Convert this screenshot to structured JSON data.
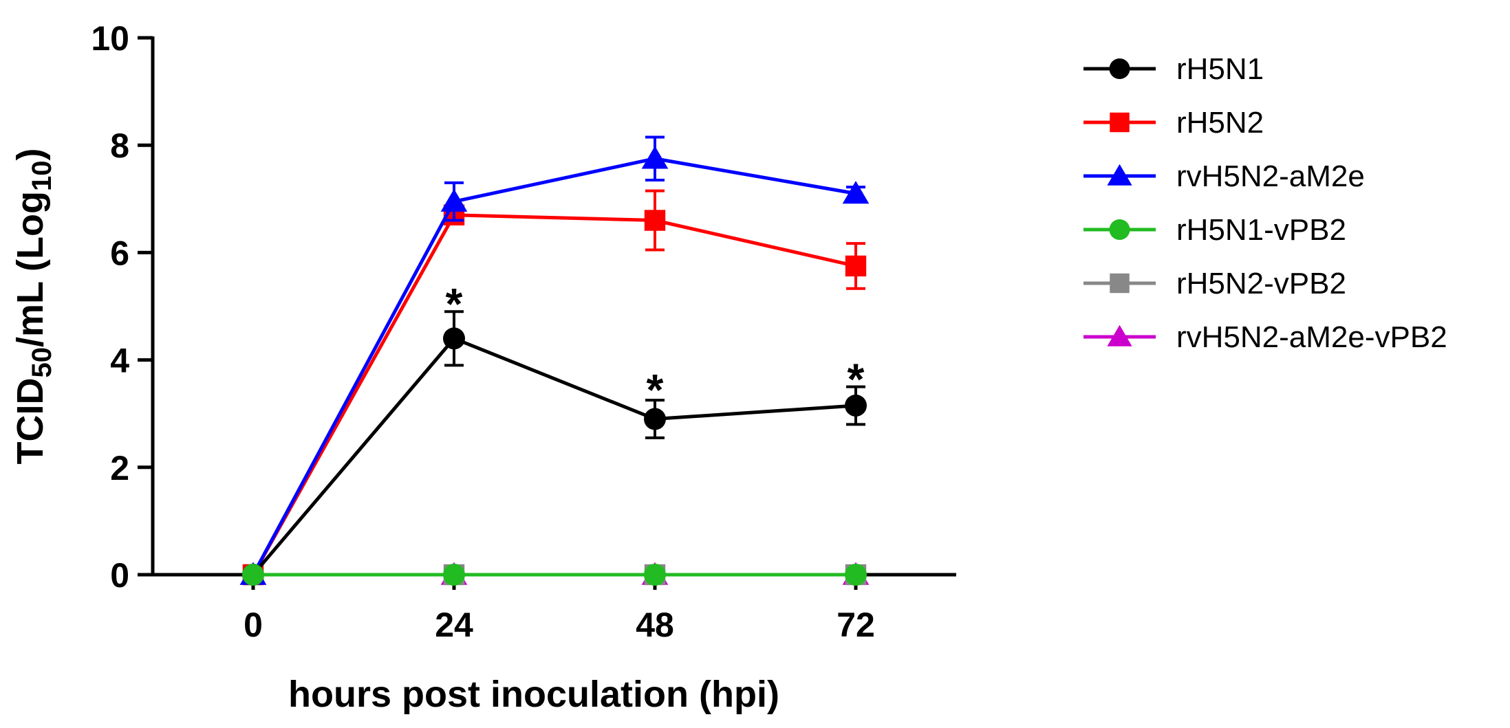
{
  "chart_data": {
    "type": "line",
    "title": "",
    "xlabel": "hours post inoculation (hpi)",
    "ylabel": {
      "prefix": "TCID",
      "sub1": "50",
      "mid": "/mL (Log",
      "sub2": "10",
      "suffix": ")"
    },
    "x": [
      0,
      24,
      48,
      72
    ],
    "x_tick_labels": [
      "0",
      "24",
      "48",
      "72"
    ],
    "xlim": [
      -12,
      84
    ],
    "ylim": [
      0,
      10
    ],
    "y_ticks": [
      0,
      2,
      4,
      6,
      8,
      10
    ],
    "y_tick_labels": [
      "0",
      "2",
      "4",
      "6",
      "8",
      "10"
    ],
    "legend_position": "right",
    "series": [
      {
        "name": "rH5N1",
        "color": "#000000",
        "marker": "circle",
        "values": [
          0,
          4.4,
          2.9,
          3.15
        ],
        "errors": [
          0,
          0.5,
          0.35,
          0.35
        ]
      },
      {
        "name": "rH5N2",
        "color": "#ff0000",
        "marker": "square",
        "values": [
          0,
          6.7,
          6.6,
          5.75
        ],
        "errors": [
          0,
          0.12,
          0.55,
          0.42
        ]
      },
      {
        "name": "rvH5N2-aM2e",
        "color": "#0000ff",
        "marker": "triangle",
        "values": [
          0,
          6.95,
          7.75,
          7.1
        ],
        "errors": [
          0,
          0.35,
          0.4,
          0.12
        ]
      },
      {
        "name": "rH5N1-vPB2",
        "color": "#22bb22",
        "marker": "circle",
        "values": [
          0,
          0,
          0,
          0
        ],
        "errors": [
          0,
          0,
          0,
          0
        ]
      },
      {
        "name": "rH5N2-vPB2",
        "color": "#888888",
        "marker": "square",
        "values": [
          0,
          0,
          0,
          0
        ],
        "errors": [
          0,
          0,
          0,
          0
        ]
      },
      {
        "name": "rvH5N2-aM2e-vPB2",
        "color": "#cc00cc",
        "marker": "triangle",
        "values": [
          0,
          0,
          0,
          0
        ],
        "errors": [
          0,
          0,
          0,
          0
        ]
      }
    ],
    "annotations": [
      {
        "text": "*",
        "x": 24,
        "y": 5.3
      },
      {
        "text": "*",
        "x": 48,
        "y": 3.7
      },
      {
        "text": "*",
        "x": 72,
        "y": 3.9
      }
    ]
  }
}
